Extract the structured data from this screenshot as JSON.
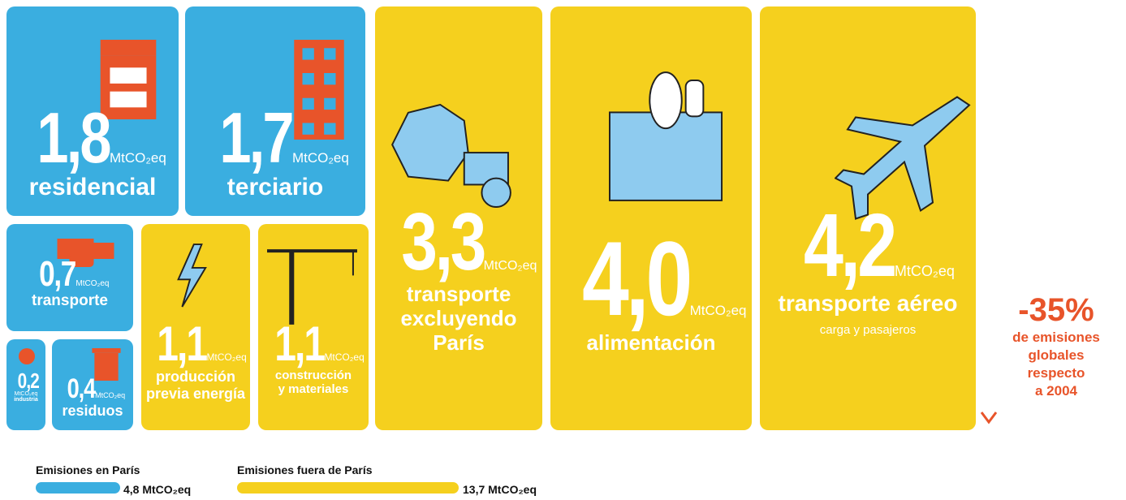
{
  "tiles": [
    {
      "value": "1,8",
      "unit": "MtCO₂eq",
      "label": [
        "residencial"
      ]
    },
    {
      "value": "1,7",
      "unit": "MtCO₂eq",
      "label": [
        "terciario"
      ]
    },
    {
      "value": "0,7",
      "unit": "MtCO₂eq",
      "label": [
        "transporte"
      ]
    },
    {
      "value": "0,2",
      "unit": "MtCO₂eq",
      "label": [
        "industria"
      ]
    },
    {
      "value": "0,4",
      "unit": "MtCO₂eq",
      "label": [
        "residuos"
      ]
    },
    {
      "value": "1,1",
      "unit": "MtCO₂eq",
      "label": [
        "producción",
        "previa energía"
      ]
    },
    {
      "value": "1,1",
      "unit": "MtCO₂eq",
      "label": [
        "construcción",
        "y materiales"
      ]
    },
    {
      "value": "3,3",
      "unit": "MtCO₂eq",
      "label": [
        "transporte",
        "excluyendo",
        "París"
      ]
    },
    {
      "value": "4,0",
      "unit": "MtCO₂eq",
      "label": [
        "alimentación"
      ]
    },
    {
      "value": "4,2",
      "unit": "MtCO₂eq",
      "label": [
        "transporte aéreo"
      ],
      "note": "carga y pasajeros"
    }
  ],
  "side": {
    "change": "-35%",
    "note": [
      "de emisiones",
      "globales",
      "respecto",
      "a 2004"
    ]
  },
  "legend": [
    {
      "label": "Emisiones en París",
      "value": "4,8 MtCO₂eq"
    },
    {
      "label": "Emisiones fuera de París",
      "value": "13,7 MtCO₂eq"
    }
  ]
}
